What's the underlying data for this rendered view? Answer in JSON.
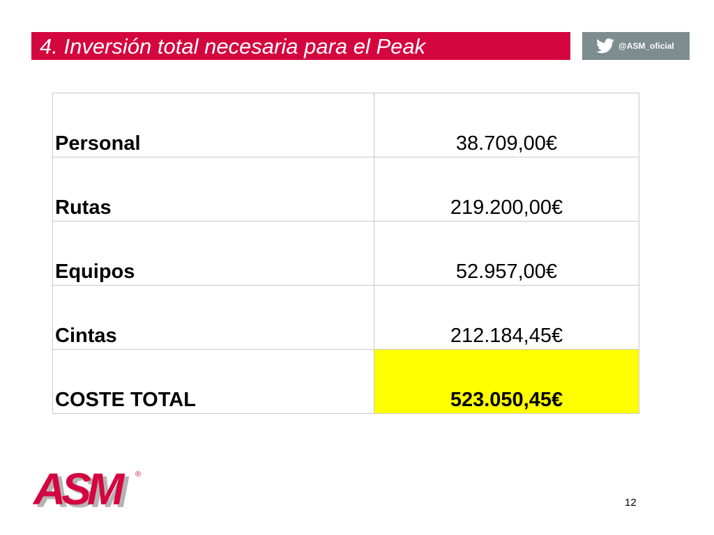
{
  "header": {
    "title": "4. Inversión total necesaria para el Peak",
    "twitter_handle": "@ASM_oficial",
    "twitter_icon": "twitter-bird-icon"
  },
  "colors": {
    "title_bar": "#d4063f",
    "twitter_badge": "#7d8c8e",
    "total_highlight": "#ffff00",
    "logo_red": "#d4063f",
    "logo_shadow": "#b4b4b4"
  },
  "table": {
    "rows": [
      {
        "label": "Personal",
        "value": "38.709,00€"
      },
      {
        "label": "Rutas",
        "value": "219.200,00€"
      },
      {
        "label": "Equipos",
        "value": "52.957,00€"
      },
      {
        "label": "Cintas",
        "value": "212.184,45€"
      }
    ],
    "total": {
      "label": "COSTE TOTAL",
      "value": "523.050,45€"
    }
  },
  "footer": {
    "logo_text": "ASM",
    "registered_mark": "®",
    "page_number": "12"
  }
}
